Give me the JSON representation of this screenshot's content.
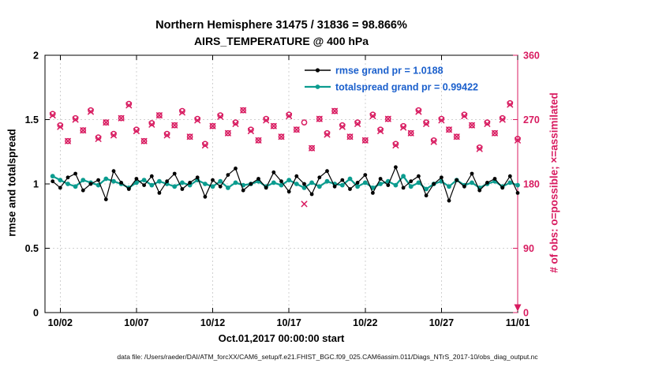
{
  "colors": {
    "pink": "#d81b60",
    "teal": "#0b9c8f",
    "legend_text": "#1a5fcc",
    "grid": "#d0d0d0"
  },
  "footer": "data file: /Users/raeder/DAI/ATM_forcXX/CAM6_setup/f.e21.FHIST_BGC.f09_025.CAM6assim.011/Diags_NTrS_2017-10/obs_diag_output.nc",
  "chart_data": {
    "type": "line",
    "title": "Northern Hemisphere 31475 / 31836 = 98.866%",
    "subtitle": "AIRS_TEMPERATURE @ 400 hPa",
    "xlabel": "Oct.01,2017 00:00:00 start",
    "ylabel_left": "rmse and totalspread",
    "ylabel_right": "# of obs: o=possible; ×=assimilated",
    "grid": true,
    "x_range_days": [
      0,
      31
    ],
    "x_tick_days": [
      1,
      6,
      11,
      16,
      21,
      26,
      31
    ],
    "x_tick_labels": [
      "10/02",
      "10/07",
      "10/12",
      "10/17",
      "10/22",
      "10/27",
      "11/01"
    ],
    "ylim_left": [
      0,
      2
    ],
    "yticks_left": [
      0,
      0.5,
      1,
      1.5,
      2
    ],
    "ylim_right": [
      0,
      360
    ],
    "yticks_right": [
      0,
      90,
      180,
      270,
      360
    ],
    "legend": [
      {
        "label": "rmse grand pr = 1.0188",
        "series": "rmse"
      },
      {
        "label": "totalspread grand pr = 0.99422",
        "series": "totalspread"
      }
    ],
    "x_days_since_oct01": [
      0.5,
      1,
      1.5,
      2,
      2.5,
      3,
      3.5,
      4,
      4.5,
      5,
      5.5,
      6,
      6.5,
      7,
      7.5,
      8,
      8.5,
      9,
      9.5,
      10,
      10.5,
      11,
      11.5,
      12,
      12.5,
      13,
      13.5,
      14,
      14.5,
      15,
      15.5,
      16,
      16.5,
      17,
      17.5,
      18,
      18.5,
      19,
      19.5,
      20,
      20.5,
      21,
      21.5,
      22,
      22.5,
      23,
      23.5,
      24,
      24.5,
      25,
      25.5,
      26,
      26.5,
      27,
      27.5,
      28,
      28.5,
      29,
      29.5,
      30,
      30.5,
      31
    ],
    "series": [
      {
        "name": "rmse",
        "axis": "left",
        "marker": "filled-circle",
        "color": "#000000",
        "values": [
          1.02,
          0.97,
          1.05,
          1.08,
          0.95,
          1.0,
          1.03,
          0.88,
          1.1,
          1.01,
          0.96,
          1.04,
          0.99,
          1.06,
          0.93,
          1.02,
          1.08,
          0.96,
          1.01,
          1.05,
          0.9,
          1.03,
          0.98,
          1.07,
          1.12,
          0.95,
          1.0,
          1.04,
          0.97,
          1.09,
          1.02,
          0.94,
          1.06,
          1.0,
          0.92,
          1.05,
          1.1,
          0.98,
          1.03,
          0.96,
          1.01,
          1.07,
          0.93,
          1.04,
          0.99,
          1.13,
          0.97,
          1.02,
          1.06,
          0.91,
          1.0,
          1.05,
          0.87,
          1.03,
          0.98,
          1.08,
          0.95,
          1.01,
          1.04,
          0.97,
          1.06,
          0.93
        ]
      },
      {
        "name": "totalspread",
        "axis": "left",
        "marker": "filled-circle",
        "color": "#0b9c8f",
        "values": [
          1.06,
          1.03,
          1.0,
          0.98,
          1.03,
          1.01,
          0.99,
          1.04,
          1.02,
          1.0,
          0.97,
          1.01,
          1.03,
          0.99,
          1.02,
          1.0,
          0.98,
          1.01,
          0.99,
          1.03,
          1.0,
          0.98,
          1.02,
          0.97,
          1.01,
          0.99,
          1.0,
          1.02,
          0.98,
          1.01,
          0.99,
          1.03,
          1.0,
          0.97,
          1.01,
          0.98,
          1.02,
          1.0,
          0.99,
          1.04,
          0.98,
          1.01,
          0.97,
          1.0,
          1.02,
          0.99,
          1.06,
          0.98,
          1.01,
          0.96,
          1.0,
          1.02,
          0.98,
          1.03,
          0.99,
          1.01,
          0.97,
          1.0,
          1.02,
          0.98,
          1.01,
          0.99
        ]
      },
      {
        "name": "possible_obs",
        "axis": "right",
        "marker": "o",
        "color": "#d81b60",
        "values": [
          278,
          262,
          240,
          272,
          255,
          283,
          245,
          266,
          250,
          272,
          292,
          256,
          240,
          265,
          276,
          250,
          262,
          282,
          246,
          271,
          236,
          261,
          276,
          251,
          266,
          283,
          256,
          241,
          271,
          261,
          246,
          277,
          256,
          266,
          230,
          271,
          251,
          282,
          262,
          246,
          266,
          241,
          277,
          256,
          271,
          236,
          261,
          251,
          283,
          266,
          241,
          271,
          256,
          246,
          277,
          262,
          231,
          266,
          251,
          272,
          293,
          243
        ]
      },
      {
        "name": "assimilated_obs",
        "axis": "right",
        "marker": "x",
        "color": "#d81b60",
        "values": [
          276,
          260,
          240,
          270,
          255,
          281,
          243,
          266,
          248,
          272,
          290,
          254,
          240,
          263,
          276,
          248,
          262,
          280,
          246,
          269,
          234,
          261,
          274,
          251,
          264,
          283,
          254,
          241,
          269,
          261,
          246,
          275,
          256,
          152,
          230,
          271,
          249,
          282,
          260,
          246,
          264,
          241,
          275,
          254,
          271,
          234,
          259,
          251,
          281,
          264,
          239,
          269,
          256,
          246,
          275,
          262,
          229,
          264,
          251,
          270,
          291,
          241
        ]
      }
    ]
  }
}
